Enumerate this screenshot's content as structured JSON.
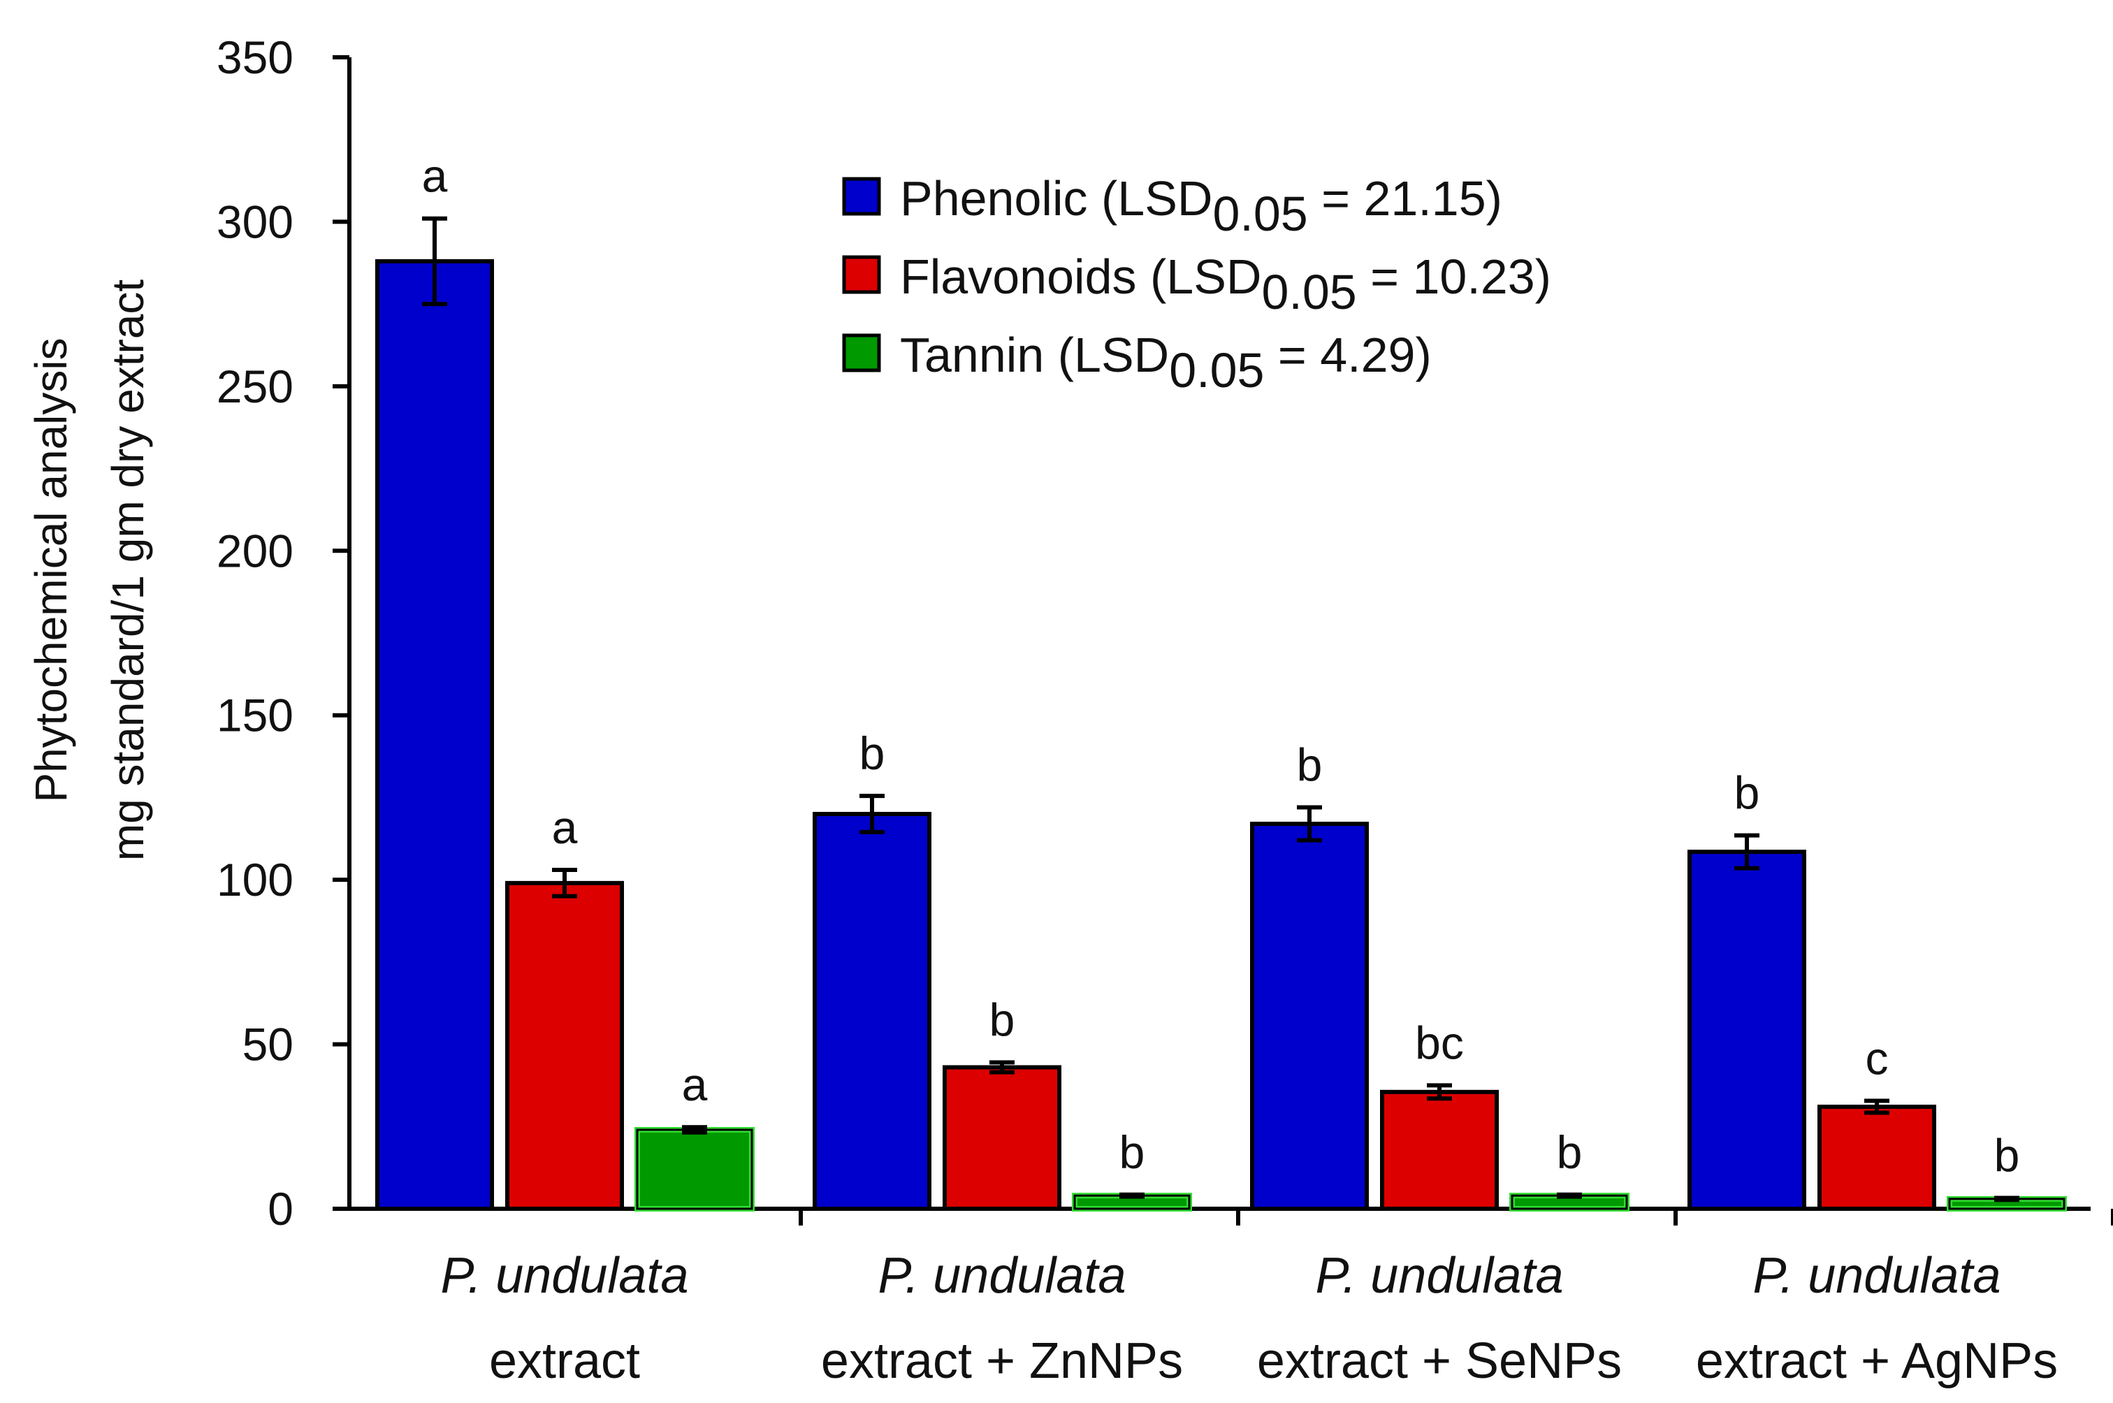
{
  "chart_data": {
    "type": "bar",
    "title": "",
    "xlabel": "",
    "ylabel": [
      "Phytochemical analysis",
      "mg standard/1 gm dry extract"
    ],
    "ylim": [
      0,
      350
    ],
    "yticks": [
      0,
      50,
      100,
      150,
      200,
      250,
      300,
      350
    ],
    "categories": [
      {
        "line1": "P. undulata",
        "line2": "extract"
      },
      {
        "line1": "P. undulata",
        "line2": "extract + ZnNPs"
      },
      {
        "line1": "P. undulata",
        "line2": "extract + SeNPs"
      },
      {
        "line1": "P. undulata",
        "line2": "extract + AgNPs"
      }
    ],
    "series": [
      {
        "name": "Phenolic",
        "legend_prefix": "Phenolic (LSD",
        "legend_sub": "0.05",
        "legend_suffix": " = 21.15)",
        "color": "#0000cc",
        "values": [
          288,
          120,
          117,
          108.5
        ],
        "errors": [
          13,
          5.5,
          5,
          5
        ],
        "letters": [
          "a",
          "b",
          "b",
          "b"
        ]
      },
      {
        "name": "Flavonoids",
        "legend_prefix": "Flavonoids (LSD",
        "legend_sub": "0.05",
        "legend_suffix": " = 10.23)",
        "color": "#dd0000",
        "values": [
          99,
          43,
          35.5,
          31
        ],
        "errors": [
          4,
          1.5,
          2,
          1.8
        ],
        "letters": [
          "a",
          "b",
          "bc",
          "c"
        ]
      },
      {
        "name": "Tannin",
        "legend_prefix": "Tannin (LSD",
        "legend_sub": "0.05",
        "legend_suffix": " = 4.29)",
        "color": "#009900",
        "edge_color": "#33dd33",
        "values": [
          24,
          4,
          4,
          3
        ],
        "errors": [
          0.8,
          0.3,
          0.3,
          0.3
        ],
        "letters": [
          "a",
          "b",
          "b",
          "b"
        ]
      }
    ]
  }
}
